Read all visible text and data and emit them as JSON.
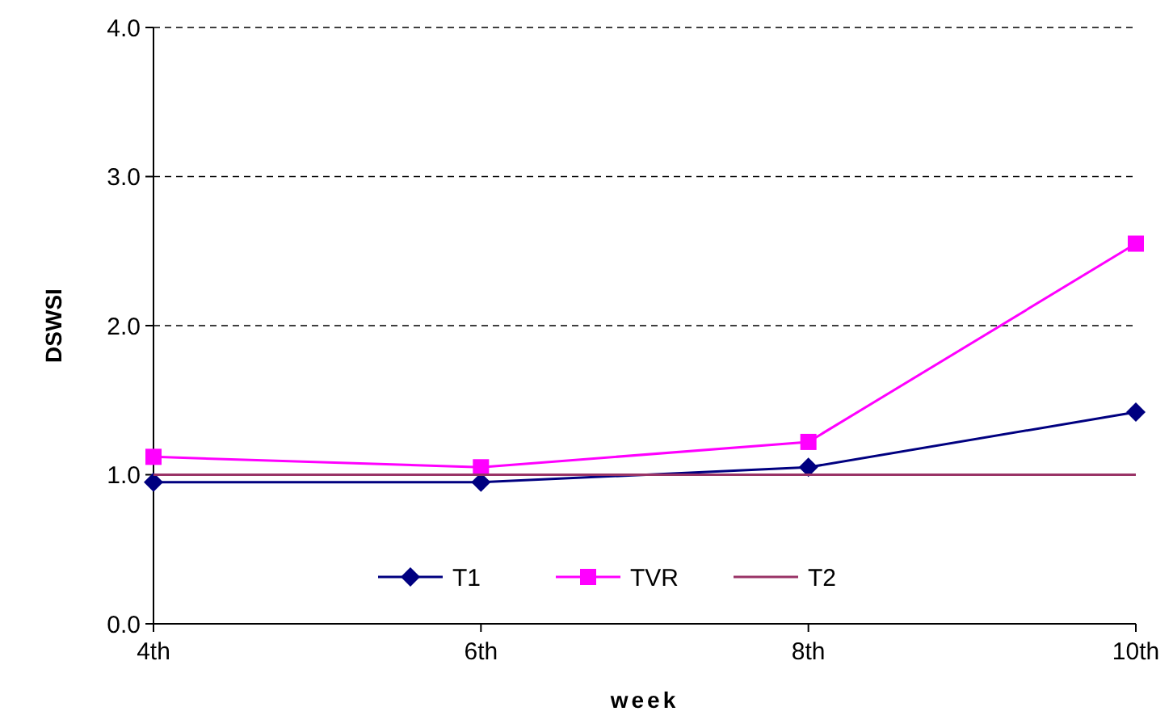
{
  "chart_data": {
    "type": "line",
    "xlabel": "week",
    "ylabel": "DSWSI",
    "categories": [
      "4th",
      "6th",
      "8th",
      "10th"
    ],
    "series": [
      {
        "name": "T1",
        "color": "#000080",
        "marker": "diamond",
        "values": [
          0.95,
          0.95,
          1.05,
          1.42
        ]
      },
      {
        "name": "TVR",
        "color": "#ff00ff",
        "marker": "square",
        "values": [
          1.12,
          1.05,
          1.22,
          2.55
        ]
      },
      {
        "name": "T2",
        "color": "#993366",
        "marker": "none",
        "values": [
          1.0,
          1.0,
          1.0,
          1.0
        ]
      }
    ],
    "ylim": [
      0,
      4
    ],
    "yticks": [
      {
        "value": 0,
        "label": "0.0"
      },
      {
        "value": 1,
        "label": "1.0"
      },
      {
        "value": 2,
        "label": "2.0"
      },
      {
        "value": 3,
        "label": "3.0"
      },
      {
        "value": 4,
        "label": "4.0"
      }
    ],
    "grid": "y",
    "legend": "bottom"
  }
}
